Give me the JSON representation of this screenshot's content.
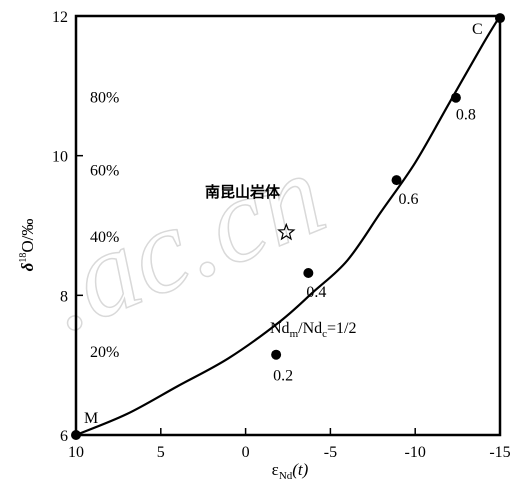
{
  "chart_data": {
    "type": "line",
    "xlabel_main": "ε",
    "xlabel_sub": "Nd",
    "xlabel_tail": "(t)",
    "ylabel_main": "δ",
    "ylabel_sup": "18",
    "ylabel_tail": "O/‰",
    "xlim": [
      10,
      -15
    ],
    "ylim": [
      6,
      12
    ],
    "x_ticks": [
      10,
      5,
      0,
      -5,
      -10,
      -15
    ],
    "x_tick_labels": [
      "10",
      "5",
      "0",
      "-5",
      "-10",
      "-15"
    ],
    "y_ticks": [
      6,
      8,
      10,
      12
    ],
    "y_tick_labels": [
      "6",
      "8",
      "10",
      "12"
    ],
    "grid": false,
    "curve": {
      "x": [
        10,
        7,
        4,
        1,
        -2,
        -4,
        -6,
        -8,
        -10,
        -12,
        -14,
        -15
      ],
      "y": [
        6.0,
        6.3,
        6.7,
        7.1,
        7.62,
        8.05,
        8.5,
        9.2,
        9.9,
        10.75,
        11.6,
        12.0
      ]
    },
    "mixing_points": [
      {
        "x": 10,
        "y": 6.0,
        "label": "M"
      },
      {
        "x": -1.8,
        "y": 7.15,
        "label": "0.2"
      },
      {
        "x": -3.7,
        "y": 8.32,
        "label": "0.4"
      },
      {
        "x": -8.9,
        "y": 9.65,
        "label": "0.6"
      },
      {
        "x": -12.4,
        "y": 10.83,
        "label": "0.8"
      },
      {
        "x": -15,
        "y": 11.97,
        "label": "C"
      }
    ],
    "sample_point": {
      "x": -2.4,
      "y": 8.9,
      "label": "南昆山岩体",
      "marker": "star"
    },
    "annotation": {
      "main": "Nd",
      "sub1": "m",
      "mid": "/Nd",
      "sub2": "c",
      "tail": "=1/2"
    },
    "left_percent_labels": [
      {
        "label": "80%",
        "y": 10.85
      },
      {
        "label": "60%",
        "y": 9.8
      },
      {
        "label": "40%",
        "y": 8.85
      },
      {
        "label": "20%",
        "y": 7.2
      }
    ],
    "watermark": ".ac.cn",
    "colors": {
      "line": "#000000",
      "marker": "#000000",
      "watermark": "#d9d9d9"
    }
  }
}
